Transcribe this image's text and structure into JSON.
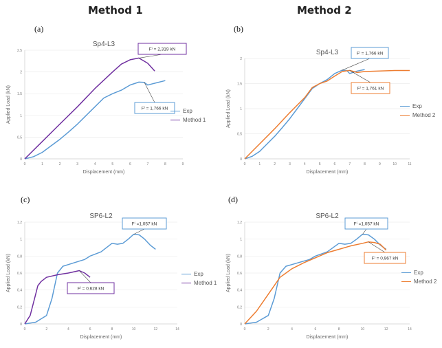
{
  "headers": {
    "method1": "Method 1",
    "method2": "Method 2"
  },
  "colors": {
    "exp": "#5b9bd5",
    "method1": "#7030a0",
    "method2": "#ed7d31"
  },
  "chart_data": [
    {
      "panel": "(a)",
      "type": "line",
      "title": "Sp4-L3",
      "xlabel": "Displacement (mm)",
      "ylabel": "Applied Load (kN)",
      "xlim": [
        0,
        9
      ],
      "ylim": [
        0,
        2.5
      ],
      "xticks": [
        "0",
        "1",
        "2",
        "3",
        "4",
        "5",
        "6",
        "7",
        "8",
        "9"
      ],
      "yticks": [
        "0",
        "0.5",
        "1",
        "1.5",
        "2",
        "2.5"
      ],
      "series": [
        {
          "name": "Exp",
          "color": "#5b9bd5",
          "x": [
            0,
            0.5,
            1,
            1.5,
            2,
            2.5,
            3,
            3.5,
            4,
            4.5,
            5,
            5.5,
            6,
            6.5,
            6.8,
            7,
            7.2,
            7.5,
            8
          ],
          "y": [
            0,
            0.05,
            0.15,
            0.3,
            0.45,
            0.62,
            0.8,
            1.0,
            1.2,
            1.4,
            1.5,
            1.58,
            1.7,
            1.766,
            1.76,
            1.7,
            1.72,
            1.75,
            1.8
          ]
        },
        {
          "name": "Method 1",
          "color": "#7030a0",
          "x": [
            0,
            1,
            2,
            3,
            4,
            5,
            5.5,
            6,
            6.5,
            7,
            7.4
          ],
          "y": [
            0,
            0.4,
            0.8,
            1.2,
            1.62,
            2.0,
            2.18,
            2.28,
            2.319,
            2.2,
            2.02
          ]
        }
      ],
      "annotations": [
        {
          "text": "Fⁱ = 2,319 kN",
          "border": "#7030a0"
        },
        {
          "text": "Fⁱ = 1,766 kN",
          "border": "#5b9bd5"
        }
      ]
    },
    {
      "panel": "(b)",
      "type": "line",
      "title": "Sp4-L3",
      "xlabel": "Displacement (mm)",
      "ylabel": "Applied Load (kN)",
      "xlim": [
        0,
        11
      ],
      "ylim": [
        0,
        2
      ],
      "xticks": [
        "0",
        "1",
        "2",
        "3",
        "4",
        "5",
        "6",
        "7",
        "8",
        "9",
        "10",
        "11"
      ],
      "yticks": [
        "0",
        "0.5",
        "1",
        "1.5",
        "2"
      ],
      "series": [
        {
          "name": "Exp",
          "color": "#5b9bd5",
          "x": [
            0,
            0.5,
            1,
            1.5,
            2,
            2.5,
            3,
            3.5,
            4,
            4.5,
            5,
            5.5,
            6,
            6.5,
            6.8,
            7,
            7.5,
            8
          ],
          "y": [
            0,
            0.05,
            0.15,
            0.3,
            0.45,
            0.62,
            0.8,
            1.0,
            1.2,
            1.4,
            1.5,
            1.58,
            1.7,
            1.766,
            1.76,
            1.7,
            1.75,
            1.78
          ]
        },
        {
          "name": "Method 2",
          "color": "#ed7d31",
          "x": [
            0,
            1,
            2,
            3,
            4,
            4.5,
            5,
            5.5,
            6,
            6.5,
            7,
            7.5,
            8,
            9,
            10,
            11
          ],
          "y": [
            0,
            0.3,
            0.6,
            0.92,
            1.22,
            1.42,
            1.5,
            1.55,
            1.65,
            1.74,
            1.761,
            1.72,
            1.74,
            1.75,
            1.76,
            1.76
          ]
        }
      ],
      "annotations": [
        {
          "text": "Fⁱ = 1,766 kN",
          "border": "#5b9bd5"
        },
        {
          "text": "Fⁱ = 1,761 kN",
          "border": "#ed7d31"
        }
      ]
    },
    {
      "panel": "(c)",
      "type": "line",
      "title": "SP6-L2",
      "xlabel": "Displacement (mm)",
      "ylabel": "Applied Load (kN)",
      "xlim": [
        0,
        14
      ],
      "ylim": [
        0,
        1.2
      ],
      "xticks": [
        "0",
        "2",
        "4",
        "6",
        "8",
        "10",
        "12",
        "14"
      ],
      "yticks": [
        "0",
        "0.2",
        "0.4",
        "0.6",
        "0.8",
        "1",
        "1.2"
      ],
      "series": [
        {
          "name": "Exp",
          "color": "#5b9bd5",
          "x": [
            0,
            1,
            2,
            2.5,
            3,
            3.5,
            4,
            4.5,
            5,
            5.5,
            6,
            7,
            8,
            8.5,
            9,
            9.5,
            10,
            10.5,
            11,
            11.5,
            12
          ],
          "y": [
            0,
            0.02,
            0.1,
            0.3,
            0.6,
            0.68,
            0.7,
            0.72,
            0.74,
            0.76,
            0.8,
            0.85,
            0.95,
            0.94,
            0.95,
            1.0,
            1.057,
            1.05,
            1.0,
            0.93,
            0.88
          ]
        },
        {
          "name": "Method 1",
          "color": "#7030a0",
          "x": [
            0,
            0.5,
            1,
            1.2,
            1.5,
            2,
            3,
            4,
            5,
            5.5,
            6
          ],
          "y": [
            0,
            0.1,
            0.35,
            0.45,
            0.5,
            0.55,
            0.58,
            0.6,
            0.628,
            0.6,
            0.55
          ]
        }
      ],
      "annotations": [
        {
          "text": "Fⁱ =1,057 kN",
          "border": "#5b9bd5"
        },
        {
          "text": "Fⁱ = 0,628 kN",
          "border": "#7030a0"
        }
      ]
    },
    {
      "panel": "(d)",
      "type": "line",
      "title": "SP6-L2",
      "xlabel": "Displacement (mm)",
      "ylabel": "Applied Load (kN)",
      "xlim": [
        0,
        14
      ],
      "ylim": [
        0,
        1.2
      ],
      "xticks": [
        "0",
        "2",
        "4",
        "6",
        "8",
        "10",
        "12",
        "14"
      ],
      "yticks": [
        "0",
        "0.2",
        "0.4",
        "0.6",
        "0.8",
        "1",
        "1.2"
      ],
      "series": [
        {
          "name": "Exp",
          "color": "#5b9bd5",
          "x": [
            0,
            1,
            2,
            2.5,
            3,
            3.5,
            4,
            4.5,
            5,
            5.5,
            6,
            7,
            8,
            8.5,
            9,
            9.5,
            10,
            10.5,
            11,
            11.5,
            12
          ],
          "y": [
            0,
            0.02,
            0.1,
            0.3,
            0.6,
            0.68,
            0.7,
            0.72,
            0.74,
            0.76,
            0.8,
            0.85,
            0.95,
            0.94,
            0.95,
            1.0,
            1.057,
            1.05,
            1.0,
            0.93,
            0.88
          ]
        },
        {
          "name": "Method 2",
          "color": "#ed7d31",
          "x": [
            0,
            1,
            2,
            3,
            3.5,
            4,
            5,
            6,
            7,
            8,
            9,
            10,
            10.5,
            11,
            11.5,
            12
          ],
          "y": [
            0,
            0.15,
            0.35,
            0.55,
            0.6,
            0.65,
            0.72,
            0.78,
            0.84,
            0.88,
            0.92,
            0.95,
            0.967,
            0.96,
            0.94,
            0.87
          ]
        }
      ],
      "annotations": [
        {
          "text": "Fⁱ =1,057 kN",
          "border": "#5b9bd5"
        },
        {
          "text": "Fⁱ = 0,967 kN",
          "border": "#ed7d31"
        }
      ]
    }
  ]
}
